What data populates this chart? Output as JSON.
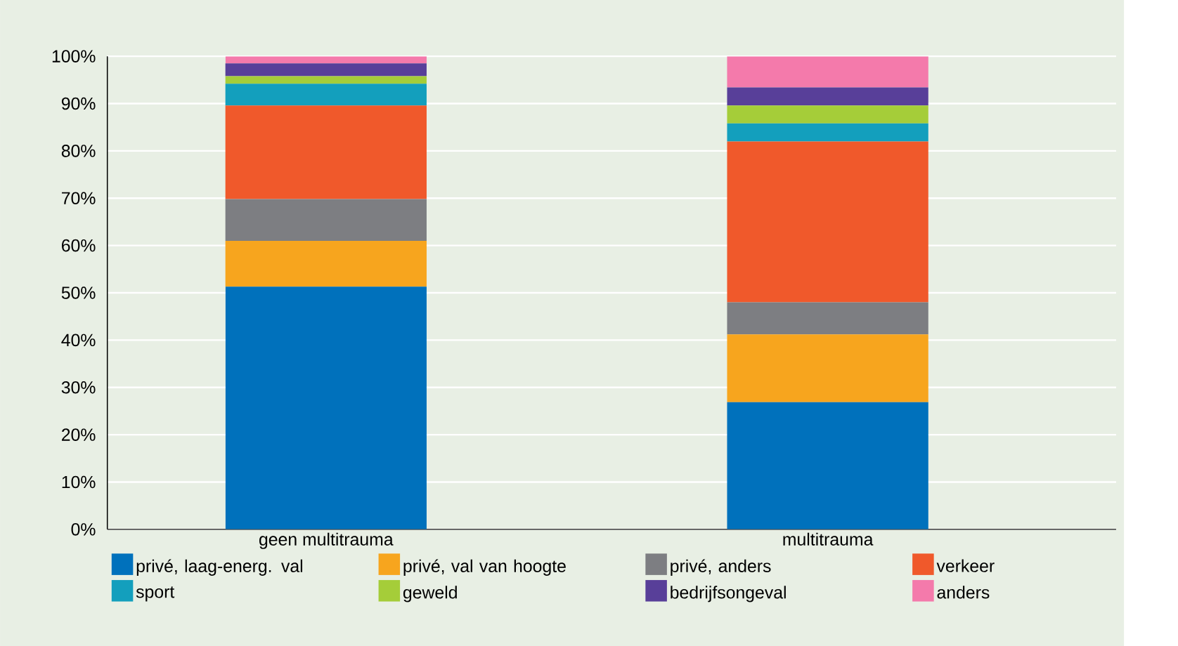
{
  "chart_data": {
    "type": "bar",
    "stacked": true,
    "categories": [
      "geen multitrauma",
      "multitrauma"
    ],
    "series": [
      {
        "name": "privé, laag-energ. val",
        "color": "#0071bc",
        "values": [
          51.3,
          26.9
        ]
      },
      {
        "name": "privé, val van hoogte",
        "color": "#f7a51e",
        "values": [
          9.7,
          14.3
        ]
      },
      {
        "name": "privé, anders",
        "color": "#7d7e82",
        "values": [
          8.8,
          6.8
        ]
      },
      {
        "name": "verkeer",
        "color": "#f0592b",
        "values": [
          19.8,
          34.0
        ]
      },
      {
        "name": "sport",
        "color": "#139fbd",
        "values": [
          4.6,
          3.8
        ]
      },
      {
        "name": "geweld",
        "color": "#a5cd39",
        "values": [
          1.6,
          3.8
        ]
      },
      {
        "name": "bedrijfsongeval",
        "color": "#583f99",
        "values": [
          2.7,
          3.8
        ]
      },
      {
        "name": "anders",
        "color": "#f47aab",
        "values": [
          1.5,
          6.6
        ]
      }
    ],
    "ylim": [
      0,
      100
    ],
    "yticks": [
      {
        "value": 0,
        "label": "0%"
      },
      {
        "value": 10,
        "label": "10%"
      },
      {
        "value": 20,
        "label": "20%"
      },
      {
        "value": 30,
        "label": "30%"
      },
      {
        "value": 40,
        "label": "40%"
      },
      {
        "value": 50,
        "label": "50%"
      },
      {
        "value": 60,
        "label": "60%"
      },
      {
        "value": 70,
        "label": "70%"
      },
      {
        "value": 80,
        "label": "80%"
      },
      {
        "value": 90,
        "label": "90%"
      },
      {
        "value": 100,
        "label": "100%"
      }
    ],
    "grid": "y",
    "legend": "bottom"
  }
}
